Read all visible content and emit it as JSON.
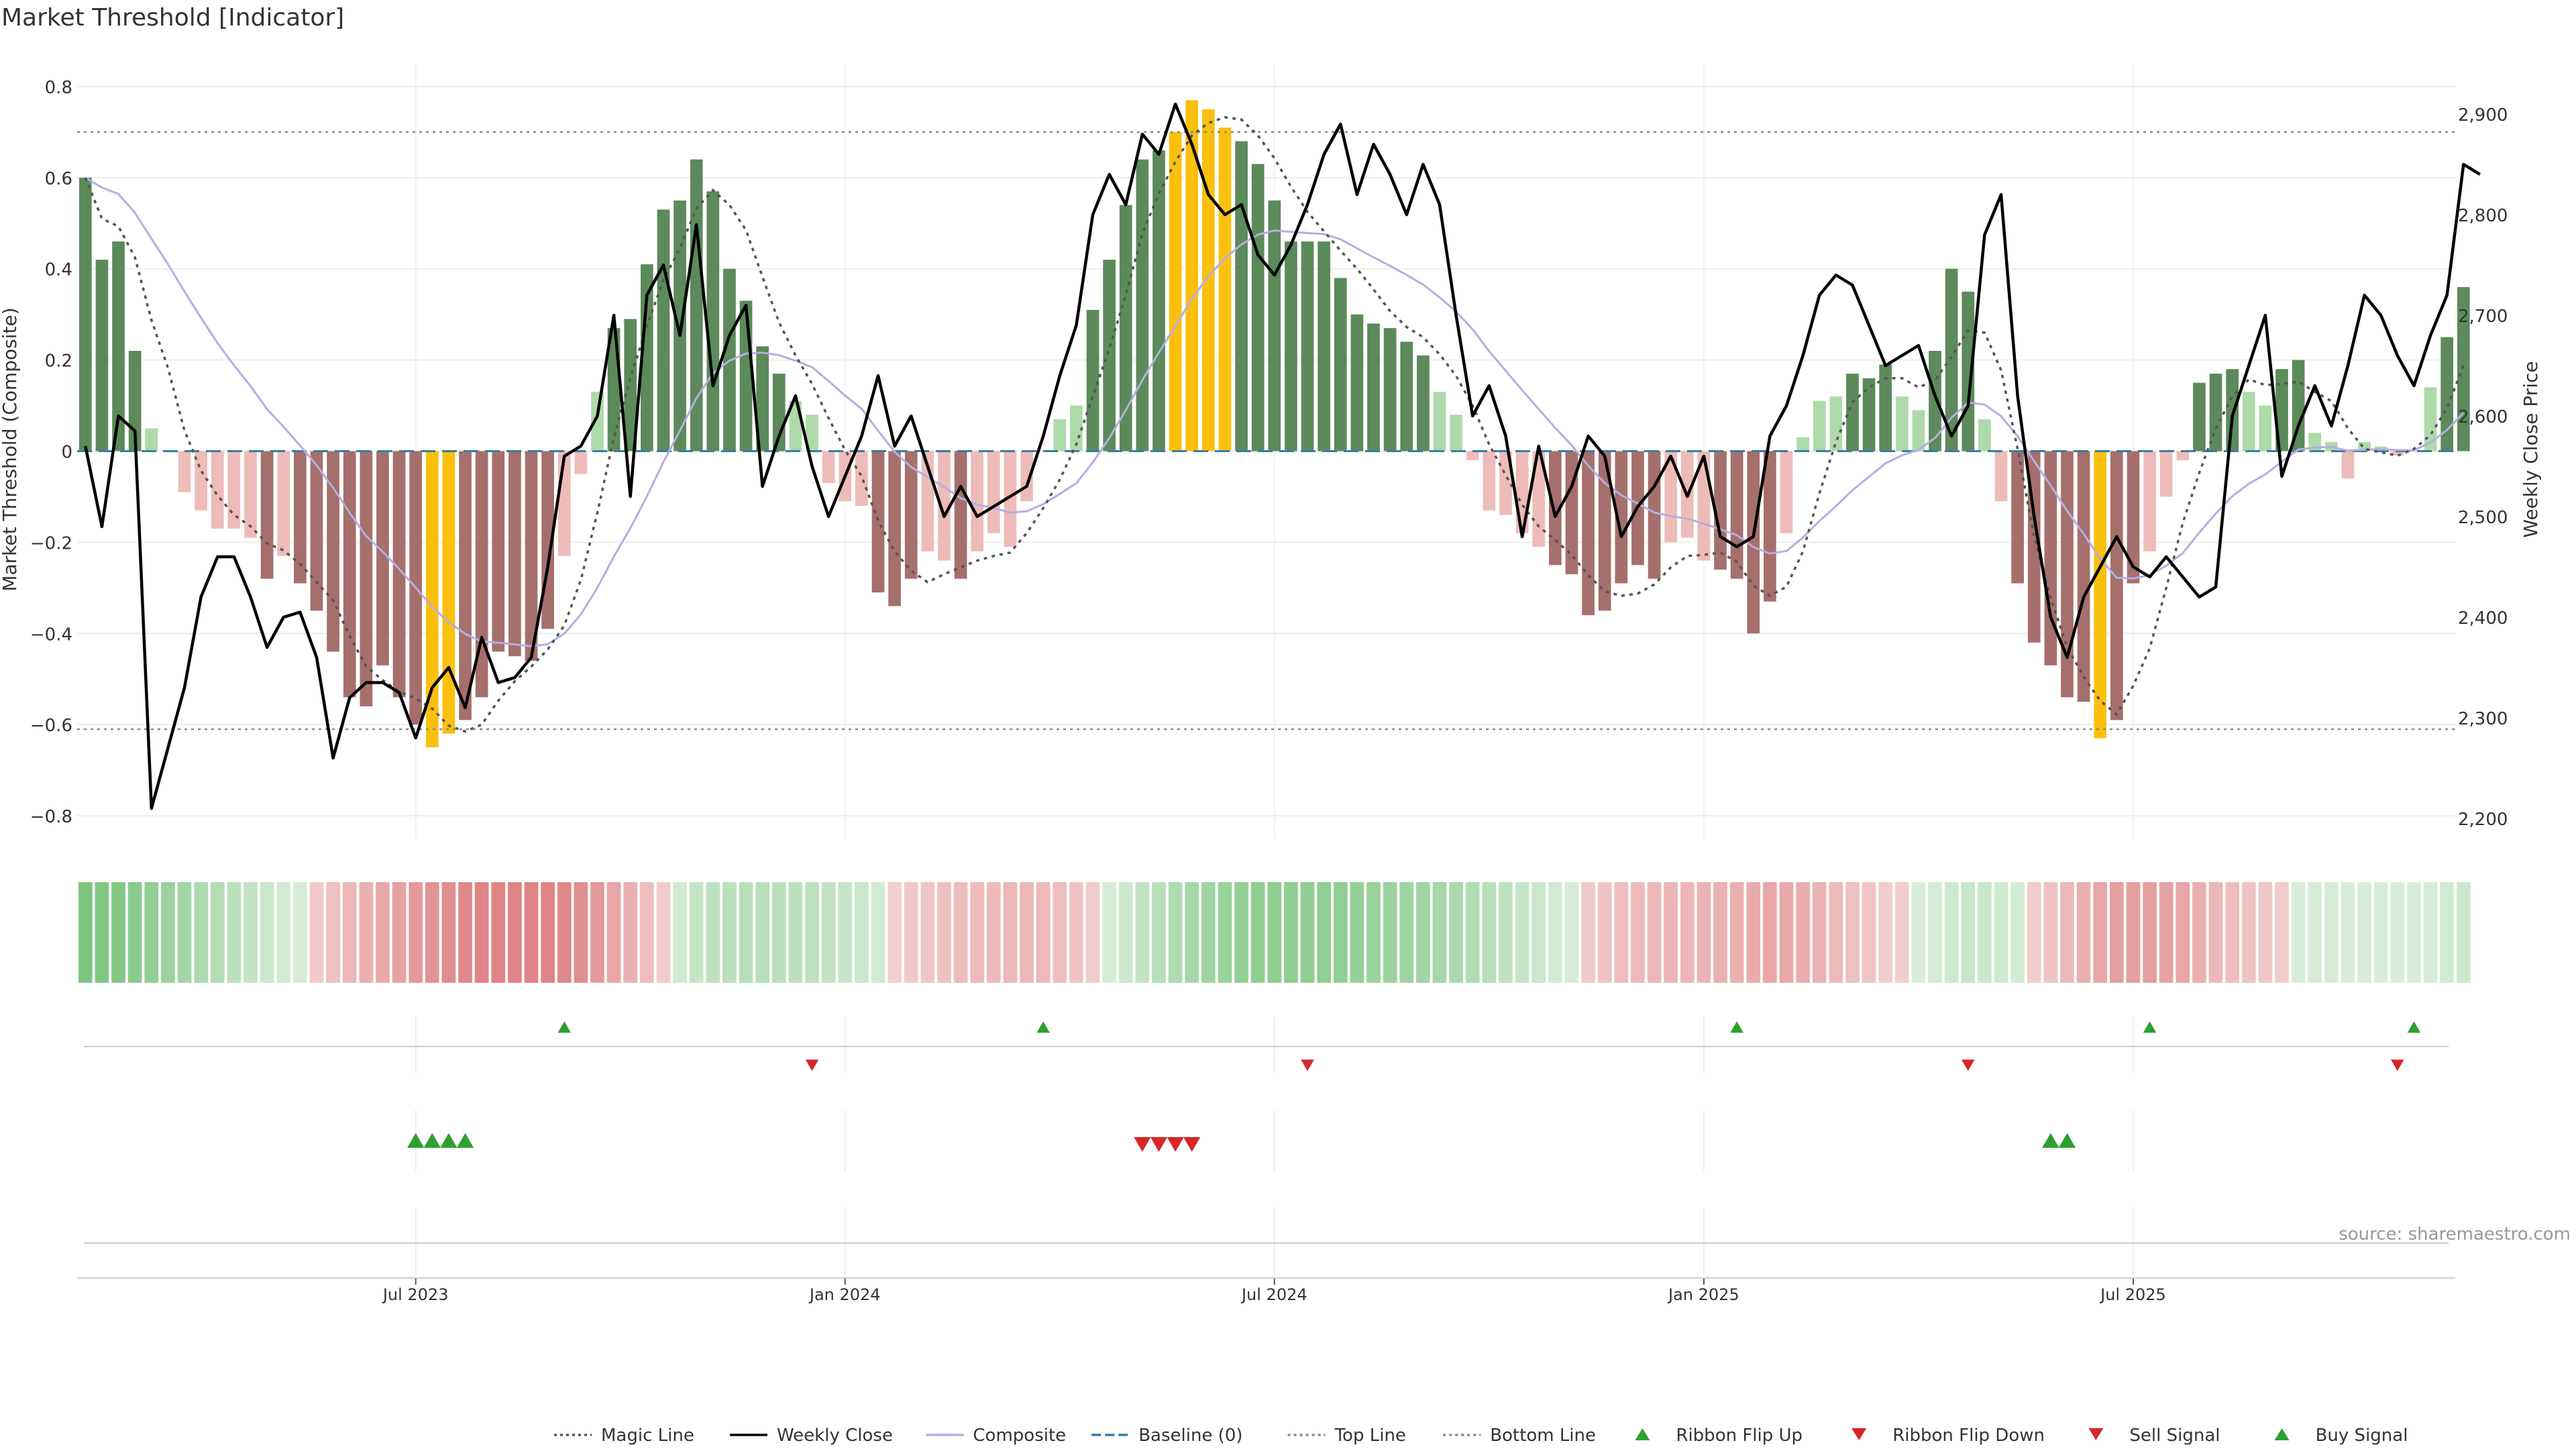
{
  "chart_data": {
    "type": "bar",
    "title": "Market Threshold [Indicator]",
    "ylabel_left": "Market Threshold (Composite)",
    "ylabel_right": "Weekly Close Price",
    "source": "source: sharemaestro.com",
    "ylim_left": [
      -0.85,
      0.85
    ],
    "ylim_right": [
      2180,
      2950
    ],
    "left_ticks": [
      {
        "v": 0.8,
        "label": "0.8"
      },
      {
        "v": 0.6,
        "label": "0.6"
      },
      {
        "v": 0.4,
        "label": "0.4"
      },
      {
        "v": 0.2,
        "label": "0.2"
      },
      {
        "v": 0,
        "label": "0"
      },
      {
        "v": -0.2,
        "label": "−0.2"
      },
      {
        "v": -0.4,
        "label": "−0.4"
      },
      {
        "v": -0.6,
        "label": "−0.6"
      },
      {
        "v": -0.8,
        "label": "−0.8"
      }
    ],
    "right_ticks": [
      {
        "v": 2900,
        "label": "2,900"
      },
      {
        "v": 2800,
        "label": "2,800"
      },
      {
        "v": 2700,
        "label": "2,700"
      },
      {
        "v": 2600,
        "label": "2,600"
      },
      {
        "v": 2500,
        "label": "2,500"
      },
      {
        "v": 2400,
        "label": "2,400"
      },
      {
        "v": 2300,
        "label": "2,300"
      },
      {
        "v": 2200,
        "label": "2,200"
      }
    ],
    "x_ticks": [
      {
        "week": 20,
        "label": "Jul 2023"
      },
      {
        "week": 46,
        "label": "Jan 2024"
      },
      {
        "week": 72,
        "label": "Jul 2024"
      },
      {
        "week": 98,
        "label": "Jan 2025"
      },
      {
        "week": 124,
        "label": "Jul 2025"
      }
    ],
    "weeks": 144,
    "top_line": 0.7,
    "bottom_line": -0.61,
    "composite": [
      0.6,
      0.42,
      0.46,
      0.22,
      0.05,
      0,
      -0.09,
      -0.13,
      -0.17,
      -0.17,
      -0.19,
      -0.28,
      -0.23,
      -0.29,
      -0.35,
      -0.44,
      -0.54,
      -0.56,
      -0.47,
      -0.54,
      -0.6,
      -0.65,
      -0.62,
      -0.59,
      -0.54,
      -0.44,
      -0.45,
      -0.46,
      -0.39,
      -0.23,
      -0.05,
      0.13,
      0.27,
      0.29,
      0.41,
      0.53,
      0.55,
      0.64,
      0.57,
      0.4,
      0.33,
      0.23,
      0.17,
      0.11,
      0.08,
      -0.07,
      -0.11,
      -0.12,
      -0.31,
      -0.34,
      -0.28,
      -0.22,
      -0.24,
      -0.28,
      -0.22,
      -0.18,
      -0.21,
      -0.11,
      0,
      0.07,
      0.1,
      0.31,
      0.42,
      0.54,
      0.64,
      0.66,
      0.7,
      0.77,
      0.75,
      0.71,
      0.68,
      0.63,
      0.55,
      0.46,
      0.46,
      0.46,
      0.38,
      0.3,
      0.28,
      0.27,
      0.24,
      0.21,
      0.13,
      0.08,
      -0.02,
      -0.13,
      -0.14,
      -0.18,
      -0.21,
      -0.25,
      -0.27,
      -0.36,
      -0.35,
      -0.29,
      -0.25,
      -0.28,
      -0.2,
      -0.19,
      -0.24,
      -0.26,
      -0.28,
      -0.4,
      -0.33,
      -0.18,
      0.03,
      0.11,
      0.12,
      0.17,
      0.16,
      0.19,
      0.12,
      0.09,
      0.22,
      0.4,
      0.35,
      0.07,
      -0.11,
      -0.29,
      -0.42,
      -0.47,
      -0.54,
      -0.55,
      -0.63,
      -0.59,
      -0.29,
      -0.22,
      -0.1,
      -0.02,
      0.15,
      0.17,
      0.18,
      0.13,
      0.1,
      0.18,
      0.2,
      0.04,
      0.02,
      -0.06,
      0.02,
      0.01,
      -0.01,
      0,
      0.14,
      0.25,
      0.36
    ],
    "weekly_close": [
      2570,
      2490,
      2600,
      2585,
      2210,
      2270,
      2330,
      2420,
      2460,
      2460,
      2420,
      2370,
      2400,
      2405,
      2360,
      2260,
      2320,
      2335,
      2335,
      2325,
      2280,
      2330,
      2350,
      2310,
      2380,
      2335,
      2340,
      2360,
      2450,
      2560,
      2570,
      2600,
      2700,
      2520,
      2720,
      2750,
      2680,
      2790,
      2630,
      2680,
      2710,
      2530,
      2580,
      2620,
      2550,
      2500,
      2540,
      2580,
      2640,
      2570,
      2600,
      2550,
      2500,
      2530,
      2500,
      2510,
      2520,
      2530,
      2580,
      2640,
      2690,
      2800,
      2840,
      2810,
      2880,
      2860,
      2910,
      2870,
      2820,
      2800,
      2810,
      2760,
      2740,
      2770,
      2810,
      2860,
      2890,
      2820,
      2870,
      2840,
      2800,
      2850,
      2810,
      2700,
      2600,
      2630,
      2580,
      2480,
      2570,
      2500,
      2530,
      2580,
      2560,
      2480,
      2510,
      2530,
      2560,
      2520,
      2560,
      2480,
      2470,
      2480,
      2580,
      2610,
      2660,
      2720,
      2740,
      2730,
      2690,
      2650,
      2660,
      2670,
      2620,
      2580,
      2610,
      2780,
      2820,
      2620,
      2500,
      2400,
      2360,
      2420,
      2450,
      2480,
      2450,
      2440,
      2460,
      2440,
      2420,
      2430,
      2600,
      2650,
      2700,
      2540,
      2590,
      2630,
      2590,
      2650,
      2720,
      2700,
      2660,
      2630,
      2680,
      2720,
      2850,
      2840
    ],
    "ribbon_flip_up_weeks": [
      29,
      58,
      100,
      125,
      141
    ],
    "ribbon_flip_down_weeks": [
      44,
      74,
      114,
      140
    ],
    "buy_signal_weeks": [
      20,
      21,
      22,
      23,
      119,
      120
    ],
    "sell_signal_weeks": [
      64,
      65,
      66,
      67
    ],
    "legend": [
      {
        "kind": "dotted",
        "color": "#555555",
        "label": "Magic Line"
      },
      {
        "kind": "line",
        "color": "#000000",
        "label": "Weekly Close"
      },
      {
        "kind": "line",
        "color": "#b5aee0",
        "label": "Composite"
      },
      {
        "kind": "dashed",
        "color": "#3a7ca5",
        "label": "Baseline (0)"
      },
      {
        "kind": "dotted",
        "color": "#888888",
        "label": "Top Line"
      },
      {
        "kind": "dotted",
        "color": "#888888",
        "label": "Bottom Line"
      },
      {
        "kind": "tri-up",
        "color": "#2ca02c",
        "label": "Ribbon Flip Up"
      },
      {
        "kind": "tri-down",
        "color": "#d62728",
        "label": "Ribbon Flip Down"
      },
      {
        "kind": "tri-down",
        "color": "#d62728",
        "label": "Sell Signal"
      },
      {
        "kind": "tri-up",
        "color": "#2ca02c",
        "label": "Buy Signal"
      }
    ],
    "colors": {
      "strong_pos": "#5c8a5a",
      "weak_pos": "#aedaa9",
      "strong_neg": "#a5706c",
      "weak_neg": "#edbcb8",
      "extreme": "#fbc00d",
      "up_marker": "#2ca02c",
      "down_marker": "#d62728"
    }
  }
}
